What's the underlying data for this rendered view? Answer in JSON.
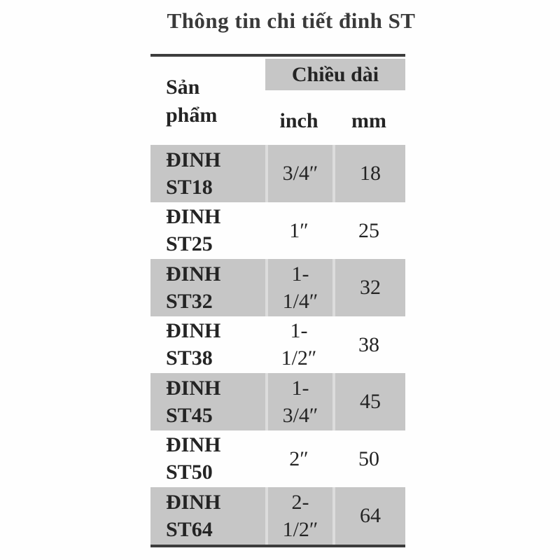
{
  "title": "Thông tin chi tiết đinh ST",
  "table": {
    "header": {
      "product": "Sản\nphẩm",
      "length_group": "Chiều dài",
      "inch": "inch",
      "mm": "mm"
    },
    "rows": [
      {
        "product": "ĐINH\nST18",
        "inch": "3/4″",
        "mm": "18"
      },
      {
        "product": "ĐINH\nST25",
        "inch": "1″",
        "mm": "25"
      },
      {
        "product": "ĐINH\nST32",
        "inch": "1-\n1/4″",
        "mm": "32"
      },
      {
        "product": "ĐINH\nST38",
        "inch": "1-\n1/2″",
        "mm": "38"
      },
      {
        "product": "ĐINH\nST45",
        "inch": "1-\n3/4″",
        "mm": "45"
      },
      {
        "product": "ĐINH\nST50",
        "inch": "2″",
        "mm": "50"
      },
      {
        "product": "ĐINH\nST64",
        "inch": "2-\n1/2″",
        "mm": "64"
      }
    ],
    "colors": {
      "shaded_row": "#c6c6c6",
      "separator": "#dcdcdc",
      "border": "#3d3d3d",
      "text": "#242424",
      "title_text": "#3a3a3a"
    }
  }
}
